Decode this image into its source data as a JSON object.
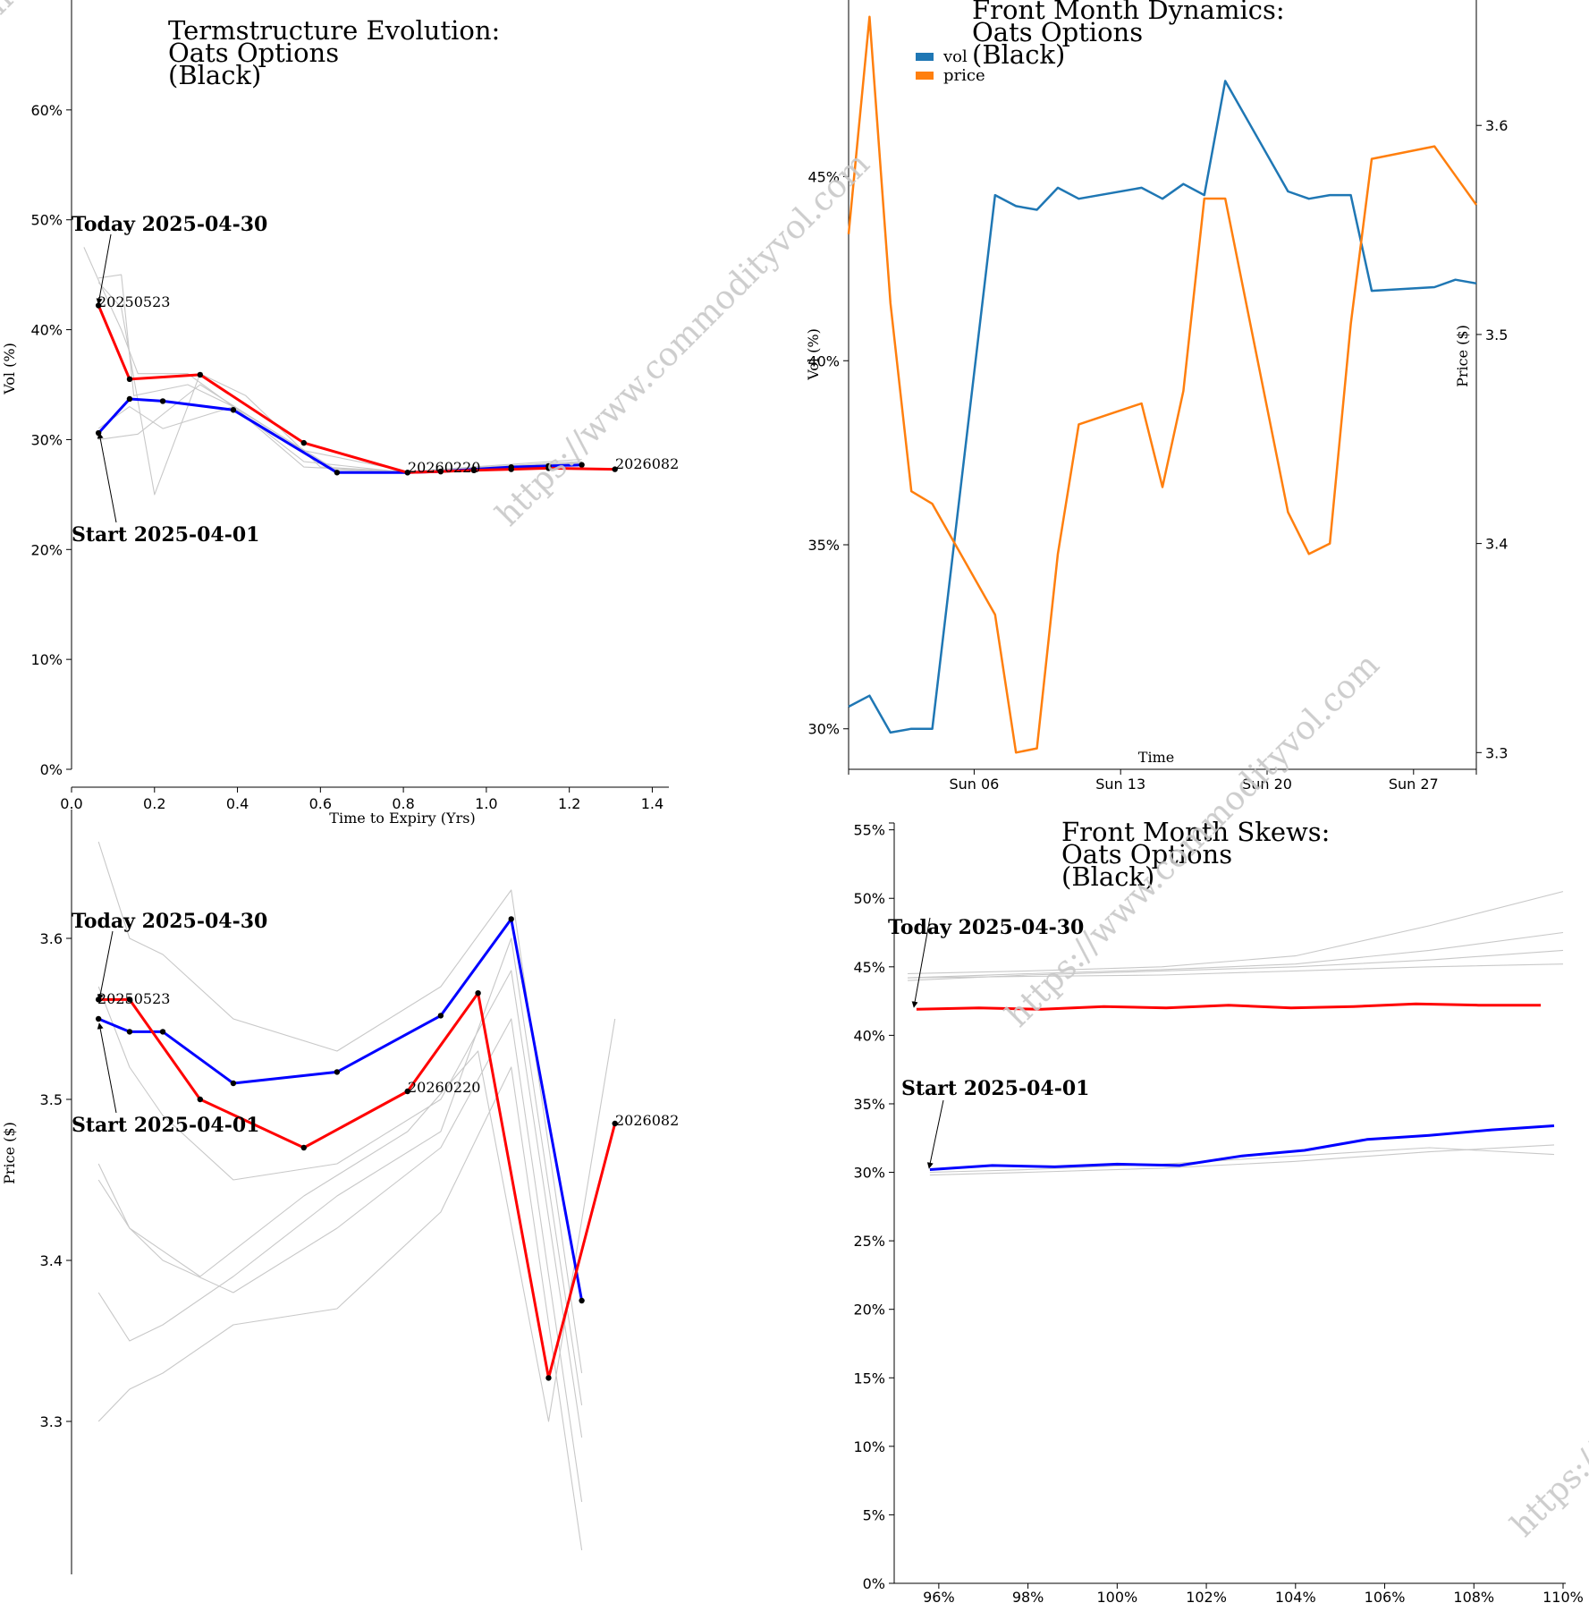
{
  "watermark": "https://www.commodityvol.com",
  "colors": {
    "start": "#0000ff",
    "today": "#ff0000",
    "history": "#c8c8c8",
    "vol": "#1f77b4",
    "price": "#ff7f0e",
    "marker": "#000000"
  },
  "chart_data": [
    {
      "id": "termstructure",
      "type": "line",
      "title": [
        "Termstructure Evolution:",
        "Oats Options",
        "(Black)"
      ],
      "xlabel": "Time to Expiry (Yrs)",
      "ylabel": "Vol (%)",
      "xlim": [
        0,
        1.44
      ],
      "ylim": [
        0,
        0.7
      ],
      "xticks": [
        "0.0",
        "0.2",
        "0.4",
        "0.6",
        "0.8",
        "1.0",
        "1.2",
        "1.4"
      ],
      "yticks": [
        "0%",
        "10%",
        "20%",
        "30%",
        "40%",
        "50%",
        "60%"
      ],
      "annotations": {
        "today": "Today 2025-04-30",
        "start": "Start 2025-04-01"
      },
      "end_labels": [
        "20250523",
        "20260220",
        "2026082"
      ],
      "series": [
        {
          "role": "start",
          "x": [
            0.065,
            0.14,
            0.22,
            0.39,
            0.64,
            0.81,
            0.89,
            0.97,
            1.06,
            1.15,
            1.23
          ],
          "y": [
            0.306,
            0.337,
            0.335,
            0.327,
            0.27,
            0.27,
            0.271,
            0.273,
            0.275,
            0.276,
            0.277
          ]
        },
        {
          "role": "today",
          "x": [
            0.065,
            0.14,
            0.31,
            0.56,
            0.81,
            0.89,
            0.97,
            1.06,
            1.15,
            1.31
          ],
          "y": [
            0.422,
            0.355,
            0.359,
            0.297,
            0.27,
            0.271,
            0.272,
            0.273,
            0.274,
            0.273
          ]
        },
        {
          "role": "history",
          "x": [
            0.03,
            0.065,
            0.12,
            0.16,
            0.28,
            0.39,
            0.56,
            0.81,
            1.23
          ],
          "y": [
            0.475,
            0.445,
            0.4,
            0.36,
            0.36,
            0.33,
            0.28,
            0.27,
            0.278
          ]
        },
        {
          "role": "history",
          "x": [
            0.065,
            0.12,
            0.15,
            0.28,
            0.39,
            0.56,
            0.81,
            1.23
          ],
          "y": [
            0.447,
            0.45,
            0.34,
            0.35,
            0.33,
            0.275,
            0.27,
            0.279
          ]
        },
        {
          "role": "history",
          "x": [
            0.065,
            0.12,
            0.2,
            0.31,
            0.42,
            0.6,
            0.81,
            1.23
          ],
          "y": [
            0.443,
            0.42,
            0.25,
            0.36,
            0.34,
            0.275,
            0.271,
            0.28
          ]
        },
        {
          "role": "history",
          "x": [
            0.065,
            0.14,
            0.22,
            0.39,
            0.64,
            0.81,
            1.23
          ],
          "y": [
            0.31,
            0.33,
            0.31,
            0.33,
            0.272,
            0.271,
            0.282
          ]
        },
        {
          "role": "history",
          "x": [
            0.065,
            0.16,
            0.31,
            0.56,
            0.81,
            1.23
          ],
          "y": [
            0.3,
            0.305,
            0.35,
            0.29,
            0.271,
            0.28
          ]
        }
      ]
    },
    {
      "id": "dynamics",
      "type": "line",
      "title": [
        "Front Month Dynamics:",
        "Oats Options",
        "(Black)"
      ],
      "xlabel": "Time",
      "ylabel": "Vol (%)",
      "y2label": "Price ($)",
      "legend": [
        "vol",
        "price"
      ],
      "legend_position": "top-left",
      "x_domain": [
        "2025-03-31",
        "2025-04-30"
      ],
      "xticks": [
        {
          "date": "2025-04-06",
          "label": "Sun 06"
        },
        {
          "date": "2025-04-13",
          "label": "Sun 13"
        },
        {
          "date": "2025-04-20",
          "label": "Sun 20"
        },
        {
          "date": "2025-04-27",
          "label": "Sun 27"
        }
      ],
      "ylim": [
        0.289,
        0.498
      ],
      "y2lim": [
        3.292,
        3.66
      ],
      "yticks": [
        "30%",
        "35%",
        "40%",
        "45%"
      ],
      "y2ticks": [
        "3.3",
        "3.4",
        "3.5",
        "3.6"
      ],
      "dates": [
        "2025-03-31",
        "2025-04-01",
        "2025-04-02",
        "2025-04-03",
        "2025-04-04",
        "2025-04-07",
        "2025-04-08",
        "2025-04-09",
        "2025-04-10",
        "2025-04-11",
        "2025-04-14",
        "2025-04-15",
        "2025-04-16",
        "2025-04-17",
        "2025-04-18",
        "2025-04-21",
        "2025-04-22",
        "2025-04-23",
        "2025-04-24",
        "2025-04-25",
        "2025-04-28",
        "2025-04-29",
        "2025-04-30"
      ],
      "vol": [
        0.306,
        0.309,
        0.299,
        0.3,
        0.3,
        0.445,
        0.442,
        0.441,
        0.447,
        0.444,
        0.447,
        0.444,
        0.448,
        0.445,
        0.476,
        0.446,
        0.444,
        0.445,
        0.445,
        0.419,
        0.42,
        0.422,
        0.421
      ],
      "price": [
        3.548,
        3.652,
        3.515,
        3.425,
        3.419,
        3.366,
        3.3,
        3.302,
        3.395,
        3.457,
        3.467,
        3.427,
        3.473,
        3.565,
        3.565,
        3.415,
        3.395,
        3.4,
        3.505,
        3.584,
        3.59,
        3.576,
        3.562
      ]
    },
    {
      "id": "price_termstructure",
      "type": "line",
      "title": [],
      "xlabel": "",
      "ylabel": "Price ($)",
      "xlim": [
        0,
        1.44
      ],
      "ylim": [
        3.205,
        3.68
      ],
      "yticks": [
        "3.3",
        "3.4",
        "3.5",
        "3.6"
      ],
      "annotations": {
        "today": "Today 2025-04-30",
        "start": "Start 2025-04-01"
      },
      "end_labels": [
        "20250523",
        "20260220",
        "2026082"
      ],
      "series": [
        {
          "role": "start",
          "x": [
            0.065,
            0.14,
            0.22,
            0.39,
            0.64,
            0.89,
            1.06,
            1.23
          ],
          "y": [
            3.55,
            3.542,
            3.542,
            3.51,
            3.517,
            3.552,
            3.612,
            3.375
          ]
        },
        {
          "role": "today",
          "x": [
            0.065,
            0.14,
            0.31,
            0.56,
            0.81,
            0.98,
            1.15,
            1.31
          ],
          "y": [
            3.562,
            3.562,
            3.5,
            3.47,
            3.505,
            3.566,
            3.327,
            3.485
          ]
        },
        {
          "role": "history",
          "x": [
            0.065,
            0.14,
            0.22,
            0.39,
            0.64,
            0.89,
            1.06,
            1.23
          ],
          "y": [
            3.66,
            3.6,
            3.59,
            3.55,
            3.53,
            3.57,
            3.63,
            3.33
          ]
        },
        {
          "role": "history",
          "x": [
            0.065,
            0.14,
            0.22,
            0.39,
            0.64,
            0.89,
            1.06,
            1.23
          ],
          "y": [
            3.57,
            3.52,
            3.49,
            3.45,
            3.46,
            3.5,
            3.58,
            3.29
          ]
        },
        {
          "role": "history",
          "x": [
            0.065,
            0.14,
            0.22,
            0.39,
            0.64,
            0.89,
            1.06,
            1.23
          ],
          "y": [
            3.46,
            3.42,
            3.4,
            3.38,
            3.42,
            3.47,
            3.55,
            3.25
          ]
        },
        {
          "role": "history",
          "x": [
            0.065,
            0.14,
            0.22,
            0.39,
            0.64,
            0.89,
            1.06,
            1.23
          ],
          "y": [
            3.3,
            3.32,
            3.33,
            3.36,
            3.37,
            3.43,
            3.52,
            3.22
          ]
        },
        {
          "role": "history",
          "x": [
            0.065,
            0.14,
            0.22,
            0.39,
            0.64,
            0.89,
            1.06,
            1.23
          ],
          "y": [
            3.38,
            3.35,
            3.36,
            3.39,
            3.44,
            3.48,
            3.6,
            3.31
          ]
        },
        {
          "role": "history",
          "x": [
            0.065,
            0.14,
            0.31,
            0.56,
            0.81,
            0.98,
            1.15,
            1.31
          ],
          "y": [
            3.45,
            3.42,
            3.39,
            3.44,
            3.48,
            3.53,
            3.3,
            3.55
          ]
        }
      ]
    },
    {
      "id": "skews",
      "type": "line",
      "title": [
        "Front Month Skews:",
        "Oats Options",
        "(Black)"
      ],
      "xlabel": "",
      "ylabel": "",
      "xlim": [
        0.95,
        1.1
      ],
      "ylim": [
        0,
        0.555
      ],
      "xticks": [
        "96%",
        "98%",
        "100%",
        "102%",
        "104%",
        "106%",
        "108%",
        "110%"
      ],
      "yticks": [
        "0%",
        "5%",
        "10%",
        "15%",
        "20%",
        "25%",
        "30%",
        "35%",
        "40%",
        "45%",
        "50%",
        "55%"
      ],
      "annotations": {
        "today": "Today 2025-04-30",
        "start": "Start 2025-04-01"
      },
      "series": [
        {
          "role": "start",
          "x": [
            0.958,
            0.972,
            0.986,
            1.0,
            1.014,
            1.028,
            1.042,
            1.056,
            1.07,
            1.084,
            1.098
          ],
          "y": [
            0.302,
            0.305,
            0.304,
            0.306,
            0.305,
            0.312,
            0.316,
            0.324,
            0.327,
            0.331,
            0.334
          ]
        },
        {
          "role": "today",
          "x": [
            0.955,
            0.969,
            0.983,
            0.997,
            1.011,
            1.025,
            1.039,
            1.053,
            1.067,
            1.081,
            1.095
          ],
          "y": [
            0.419,
            0.42,
            0.419,
            0.421,
            0.42,
            0.422,
            0.42,
            0.421,
            0.423,
            0.422,
            0.422
          ]
        },
        {
          "role": "history",
          "x": [
            0.953,
            0.98,
            1.01,
            1.04,
            1.07,
            1.1
          ],
          "y": [
            0.44,
            0.444,
            0.447,
            0.45,
            0.455,
            0.462
          ]
        },
        {
          "role": "history",
          "x": [
            0.953,
            0.98,
            1.01,
            1.04,
            1.07,
            1.1
          ],
          "y": [
            0.442,
            0.445,
            0.448,
            0.452,
            0.462,
            0.475
          ]
        },
        {
          "role": "history",
          "x": [
            0.953,
            0.98,
            1.01,
            1.04,
            1.07,
            1.1
          ],
          "y": [
            0.445,
            0.447,
            0.45,
            0.458,
            0.48,
            0.505
          ]
        },
        {
          "role": "history",
          "x": [
            0.953,
            0.98,
            1.01,
            1.04,
            1.07,
            1.1
          ],
          "y": [
            0.442,
            0.443,
            0.444,
            0.447,
            0.45,
            0.452
          ]
        },
        {
          "role": "history",
          "x": [
            0.958,
            0.98,
            1.01,
            1.04,
            1.07,
            1.098
          ],
          "y": [
            0.298,
            0.3,
            0.303,
            0.308,
            0.315,
            0.32
          ]
        },
        {
          "role": "history",
          "x": [
            0.958,
            0.98,
            1.01,
            1.04,
            1.07,
            1.098
          ],
          "y": [
            0.3,
            0.302,
            0.306,
            0.312,
            0.318,
            0.313
          ]
        }
      ]
    }
  ]
}
